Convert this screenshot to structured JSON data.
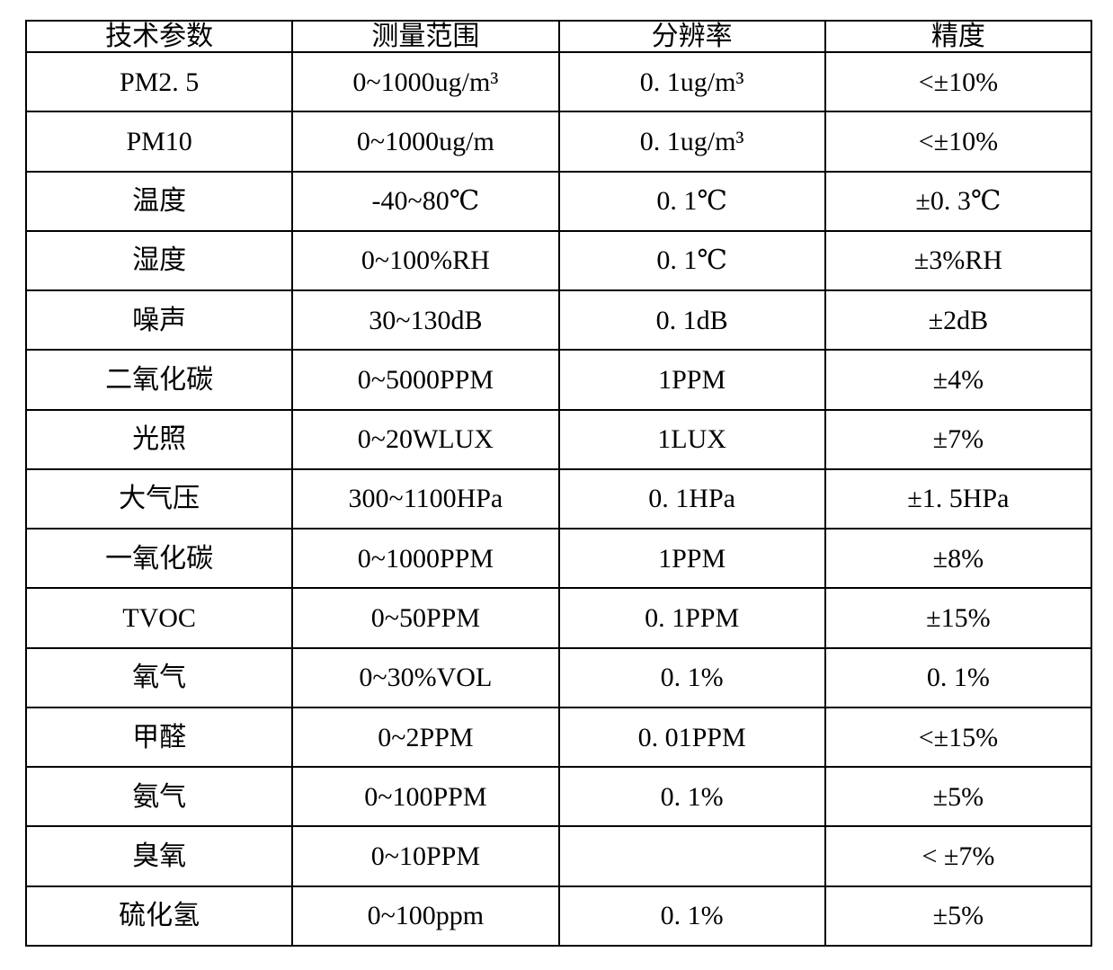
{
  "page": {
    "background_color": "#ffffff",
    "text_color": "#000000",
    "border_color": "#000000"
  },
  "table": {
    "columns": [
      "技术参数",
      "测量范围",
      "分辨率",
      "精度"
    ],
    "rows": [
      {
        "param": "PM2. 5",
        "range": "0~1000ug/m³",
        "resolution": "0. 1ug/m³",
        "accuracy": "<±10%"
      },
      {
        "param": "PM10",
        "range": "0~1000ug/m",
        "resolution": "0. 1ug/m³",
        "accuracy": "<±10%"
      },
      {
        "param": "温度",
        "range": "-40~80℃",
        "resolution": "0. 1℃",
        "accuracy": "±0. 3℃"
      },
      {
        "param": "湿度",
        "range": "0~100%RH",
        "resolution": "0. 1℃",
        "accuracy": "±3%RH"
      },
      {
        "param": "噪声",
        "range": "30~130dB",
        "resolution": "0. 1dB",
        "accuracy": "±2dB"
      },
      {
        "param": "二氧化碳",
        "range": "0~5000PPM",
        "resolution": "1PPM",
        "accuracy": "±4%"
      },
      {
        "param": "光照",
        "range": "0~20WLUX",
        "resolution": "1LUX",
        "accuracy": "±7%"
      },
      {
        "param": "大气压",
        "range": "300~1100HPa",
        "resolution": "0. 1HPa",
        "accuracy": "±1. 5HPa"
      },
      {
        "param": "一氧化碳",
        "range": "0~1000PPM",
        "resolution": "1PPM",
        "accuracy": "±8%"
      },
      {
        "param": "TVOC",
        "range": "0~50PPM",
        "resolution": "0. 1PPM",
        "accuracy": "±15%"
      },
      {
        "param": "氧气",
        "range": "0~30%VOL",
        "resolution": "0. 1%",
        "accuracy": "0. 1%"
      },
      {
        "param": "甲醛",
        "range": "0~2PPM",
        "resolution": "0. 01PPM",
        "accuracy": "<±15%"
      },
      {
        "param": "氨气",
        "range": "0~100PPM",
        "resolution": "0. 1%",
        "accuracy": "±5%"
      },
      {
        "param": "臭氧",
        "range": "0~10PPM",
        "resolution": "",
        "accuracy": "< ±7%"
      },
      {
        "param": "硫化氢",
        "range": "0~100ppm",
        "resolution": "0. 1%",
        "accuracy": "±5%"
      }
    ]
  }
}
